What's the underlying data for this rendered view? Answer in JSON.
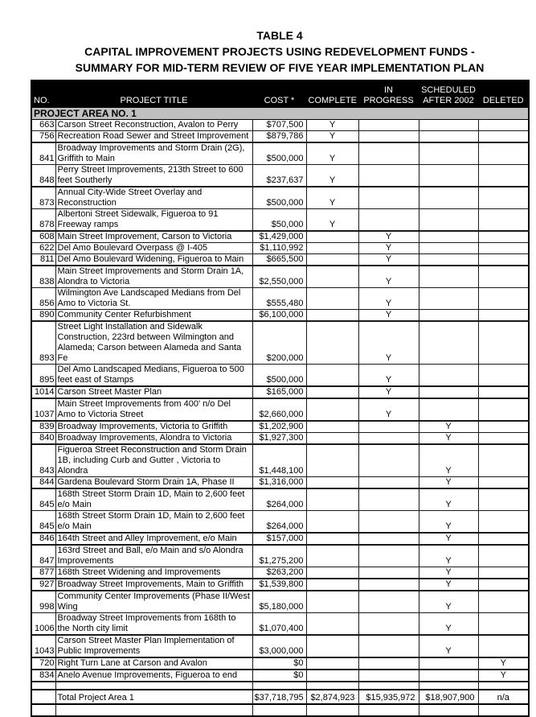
{
  "title": {
    "line1": "TABLE 4",
    "line2": "CAPITAL IMPROVEMENT PROJECTS USING REDEVELOPMENT FUNDS -",
    "line3": "SUMMARY FOR MID-TERM REVIEW OF FIVE YEAR IMPLEMENTATION PLAN"
  },
  "table": {
    "columns": [
      {
        "key": "no",
        "label": "NO."
      },
      {
        "key": "title",
        "label": "PROJECT TITLE"
      },
      {
        "key": "cost",
        "label": "COST *"
      },
      {
        "key": "complete",
        "label": "COMPLETE"
      },
      {
        "key": "in_progress",
        "label": "IN\nPROGRESS"
      },
      {
        "key": "after_2002",
        "label": "SCHEDULED\nAFTER 2002"
      },
      {
        "key": "deleted",
        "label": "DELETED"
      }
    ],
    "section_header": "PROJECT AREA NO. 1",
    "rows": [
      {
        "no": "663",
        "title": "Carson Street Reconstruction, Avalon to Perry",
        "cost": "$707,500",
        "complete": "Y",
        "in_progress": "",
        "after_2002": "",
        "deleted": "",
        "display_lines": 1,
        "thick_bottom": false
      },
      {
        "no": "756",
        "title": "Recreation Road Sewer and Street Improvement",
        "cost": "$879,786",
        "complete": "Y",
        "in_progress": "",
        "after_2002": "",
        "deleted": "",
        "display_lines": 1,
        "thick_bottom": true
      },
      {
        "no": "841",
        "title": "Broadway Improvements and Storm Drain (2G), Griffith to Main",
        "cost": "$500,000",
        "complete": "Y",
        "in_progress": "",
        "after_2002": "",
        "deleted": "",
        "display_lines": 2,
        "thick_bottom": false
      },
      {
        "no": "848",
        "title": "Perry Street Improvements, 213th Street to 600 feet Southerly",
        "cost": "$237,637",
        "complete": "Y",
        "in_progress": "",
        "after_2002": "",
        "deleted": "",
        "display_lines": 2,
        "thick_bottom": true
      },
      {
        "no": "873",
        "title": "Annual City-Wide Street Overlay and Reconstruction",
        "cost": "$500,000",
        "complete": "Y",
        "in_progress": "",
        "after_2002": "",
        "deleted": "",
        "display_lines": 2,
        "thick_bottom": false
      },
      {
        "no": "878",
        "title": "Albertoni Street Sidewalk, Figueroa to 91 Freeway ramps",
        "cost": "$50,000",
        "complete": "Y",
        "in_progress": "",
        "after_2002": "",
        "deleted": "",
        "display_lines": 2,
        "thick_bottom": true
      },
      {
        "no": "608",
        "title": "Main Street Improvement, Carson to Victoria",
        "cost": "$1,429,000",
        "complete": "",
        "in_progress": "Y",
        "after_2002": "",
        "deleted": "",
        "display_lines": 1,
        "thick_bottom": false
      },
      {
        "no": "622",
        "title": "Del Amo Boulevard Overpass @ I-405",
        "cost": "$1,110,992",
        "complete": "",
        "in_progress": "Y",
        "after_2002": "",
        "deleted": "",
        "display_lines": 1,
        "thick_bottom": false
      },
      {
        "no": "811",
        "title": "Del Amo Boulevard Widening, Figueroa to Main",
        "cost": "$665,500",
        "complete": "",
        "in_progress": "Y",
        "after_2002": "",
        "deleted": "",
        "display_lines": 1,
        "thick_bottom": true
      },
      {
        "no": "838",
        "title": "Main Street Improvements and Storm Drain 1A, Alondra to Victoria",
        "cost": "$2,550,000",
        "complete": "",
        "in_progress": "Y",
        "after_2002": "",
        "deleted": "",
        "display_lines": 2,
        "thick_bottom": false
      },
      {
        "no": "856",
        "title": "Wilmington Ave Landscaped Medians from Del Amo to Victoria St.",
        "cost": "$555,480",
        "complete": "",
        "in_progress": "Y",
        "after_2002": "",
        "deleted": "",
        "display_lines": 2,
        "thick_bottom": false
      },
      {
        "no": "890",
        "title": "Community Center Refurbishment",
        "cost": "$6,100,000",
        "complete": "",
        "in_progress": "Y",
        "after_2002": "",
        "deleted": "",
        "display_lines": 1,
        "thick_bottom": true
      },
      {
        "no": "893",
        "title": "Street Light Installation and Sidewalk Construction, 223rd between Wilmington and Alameda; Carson between Alameda and Santa Fe",
        "cost": "$200,000",
        "complete": "",
        "in_progress": "Y",
        "after_2002": "",
        "deleted": "",
        "display_lines": 3,
        "thick_bottom": false
      },
      {
        "no": "895",
        "title": "Del Amo Landscaped Medians, Figueroa to 500 feet east of Stamps",
        "cost": "$500,000",
        "complete": "",
        "in_progress": "Y",
        "after_2002": "",
        "deleted": "",
        "display_lines": 2,
        "thick_bottom": true
      },
      {
        "no": "1014",
        "title": "Carson Street Master Plan",
        "cost": "$165,000",
        "complete": "",
        "in_progress": "Y",
        "after_2002": "",
        "deleted": "",
        "display_lines": 1,
        "thick_bottom": true
      },
      {
        "no": "1037",
        "title": "Main Street Improvements from 400' n/o Del Amo to Victoria Street",
        "cost": "$2,660,000",
        "complete": "",
        "in_progress": "Y",
        "after_2002": "",
        "deleted": "",
        "display_lines": 2,
        "thick_bottom": true
      },
      {
        "no": "839",
        "title": "Broadway Improvements, Victoria to Griffith",
        "cost": "$1,202,900",
        "complete": "",
        "in_progress": "",
        "after_2002": "Y",
        "deleted": "",
        "display_lines": 1,
        "thick_bottom": false
      },
      {
        "no": "840",
        "title": "Broadway Improvements, Alondra to Victoria",
        "cost": "$1,927,300",
        "complete": "",
        "in_progress": "",
        "after_2002": "Y",
        "deleted": "",
        "display_lines": 1,
        "thick_bottom": true
      },
      {
        "no": "843",
        "title": "Figueroa Street Reconstruction and Storm Drain 1B, including Curb and Gutter , Victoria to Alondra",
        "cost": "$1,448,100",
        "complete": "",
        "in_progress": "",
        "after_2002": "Y",
        "deleted": "",
        "display_lines": 3,
        "thick_bottom": false
      },
      {
        "no": "844",
        "title": "Gardena Boulevard Storm Drain 1A, Phase II",
        "cost": "$1,316,000",
        "complete": "",
        "in_progress": "",
        "after_2002": "Y",
        "deleted": "",
        "display_lines": 1,
        "thick_bottom": true
      },
      {
        "no": "845",
        "title": "168th Street Storm Drain 1D, Main to 2,600 feet e/o Main",
        "cost": "$264,000",
        "complete": "",
        "in_progress": "",
        "after_2002": "Y",
        "deleted": "",
        "display_lines": 2,
        "thick_bottom": false
      },
      {
        "no": "845",
        "title": "168th Street Storm Drain 1D, Main to 2,600 feet e/o Main",
        "cost": "$264,000",
        "complete": "",
        "in_progress": "",
        "after_2002": "Y",
        "deleted": "",
        "display_lines": 2,
        "thick_bottom": true
      },
      {
        "no": "846",
        "title": "164th Street and Alley Improvement, e/o Main",
        "cost": "$157,000",
        "complete": "",
        "in_progress": "",
        "after_2002": "Y",
        "deleted": "",
        "display_lines": 1,
        "thick_bottom": true
      },
      {
        "no": "847",
        "title": "163rd Street and Ball, e/o Main and s/o Alondra Improvements",
        "cost": "$1,275,200",
        "complete": "",
        "in_progress": "",
        "after_2002": "Y",
        "deleted": "",
        "display_lines": 2,
        "thick_bottom": false
      },
      {
        "no": "877",
        "title": "168th Street Widening and Improvements",
        "cost": "$263,200",
        "complete": "",
        "in_progress": "",
        "after_2002": "Y",
        "deleted": "",
        "display_lines": 1,
        "thick_bottom": true
      },
      {
        "no": "927",
        "title": "Broadway Street Improvements, Main to Griffith",
        "cost": "$1,539,800",
        "complete": "",
        "in_progress": "",
        "after_2002": "Y",
        "deleted": "",
        "display_lines": 1,
        "thick_bottom": true
      },
      {
        "no": "998",
        "title": "Community Center Improvements (Phase II/West Wing",
        "cost": "$5,180,000",
        "complete": "",
        "in_progress": "",
        "after_2002": "Y",
        "deleted": "",
        "display_lines": 2,
        "thick_bottom": false
      },
      {
        "no": "1006",
        "title": "Broadway Street Improvements from 168th to the North city limit",
        "cost": "$1,070,400",
        "complete": "",
        "in_progress": "",
        "after_2002": "Y",
        "deleted": "",
        "display_lines": 2,
        "thick_bottom": true
      },
      {
        "no": "1043",
        "title": "Carson Street Master Plan Implementation of Public Improvements",
        "cost": "$3,000,000",
        "complete": "",
        "in_progress": "",
        "after_2002": "Y",
        "deleted": "",
        "display_lines": 2,
        "thick_bottom": true
      },
      {
        "no": "720",
        "title": "Right Turn Lane at Carson and Avalon",
        "cost": "$0",
        "complete": "",
        "in_progress": "",
        "after_2002": "",
        "deleted": "Y",
        "display_lines": 1,
        "thick_bottom": true
      },
      {
        "no": "834",
        "title": "Anelo Avenue Improvements, Figueroa to end",
        "cost": "$0",
        "complete": "",
        "in_progress": "",
        "after_2002": "",
        "deleted": "Y",
        "display_lines": 1,
        "thick_bottom": true
      }
    ],
    "total_row": {
      "no": "",
      "title": "Total Project Area 1",
      "cost": "$37,718,795",
      "complete": "$2,874,923",
      "in_progress": "$15,935,972",
      "after_2002": "$18,907,900",
      "deleted": "n/a"
    }
  }
}
